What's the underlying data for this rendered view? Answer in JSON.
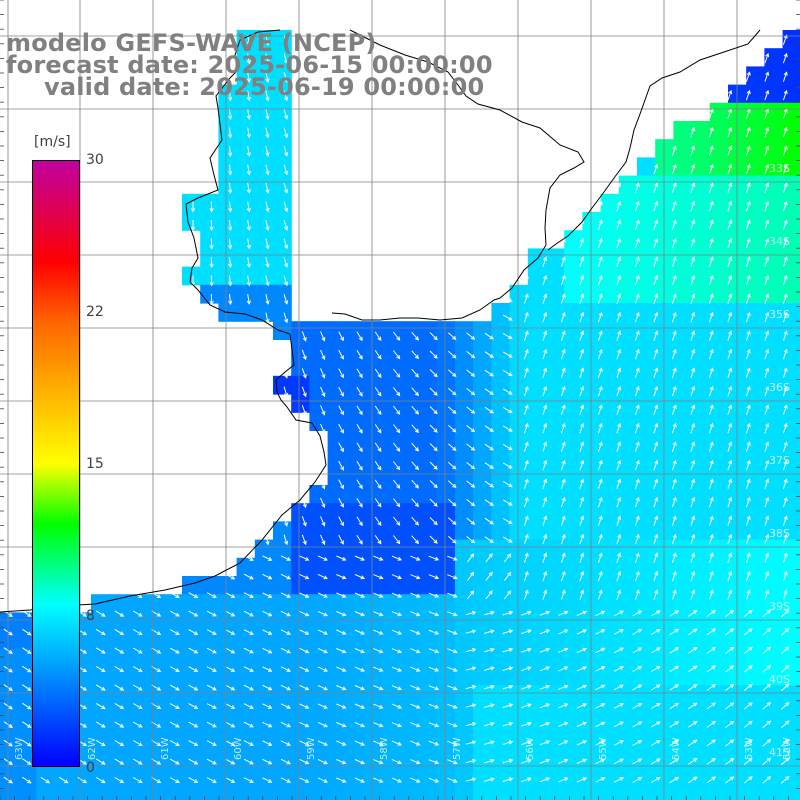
{
  "header": {
    "line1": "modelo GEFS-WAVE (NCEP)",
    "line2": "forecast date: 2025-06-15 00:00:00",
    "line3": "valid date: 2025-06-19 00:00:00"
  },
  "colorbar": {
    "units": "[m/s]",
    "ticks": [
      "30",
      "22",
      "15",
      "8",
      "0"
    ],
    "stops": [
      {
        "v": 0,
        "color": "#0000ff"
      },
      {
        "v": 8,
        "color": "#00ffff"
      },
      {
        "v": 12,
        "color": "#00ff00"
      },
      {
        "v": 15,
        "color": "#ffff00"
      },
      {
        "v": 22,
        "color": "#ff6600"
      },
      {
        "v": 25,
        "color": "#ff0000"
      },
      {
        "v": 30,
        "color": "#c000a0"
      }
    ]
  },
  "lat_labels": [
    "33S",
    "34S",
    "35S",
    "36S",
    "37S",
    "38S",
    "39S",
    "40S",
    "41S"
  ],
  "lon_labels": [
    "63W",
    "62W",
    "61W",
    "60W",
    "59W",
    "58W",
    "57W",
    "56W",
    "55W",
    "54W",
    "53W",
    "52W"
  ],
  "colors": {
    "land": "#ffffff",
    "coast": "#000000",
    "grid": "#808080",
    "arrow": "#ffffff",
    "label_gray": "#808080"
  }
}
